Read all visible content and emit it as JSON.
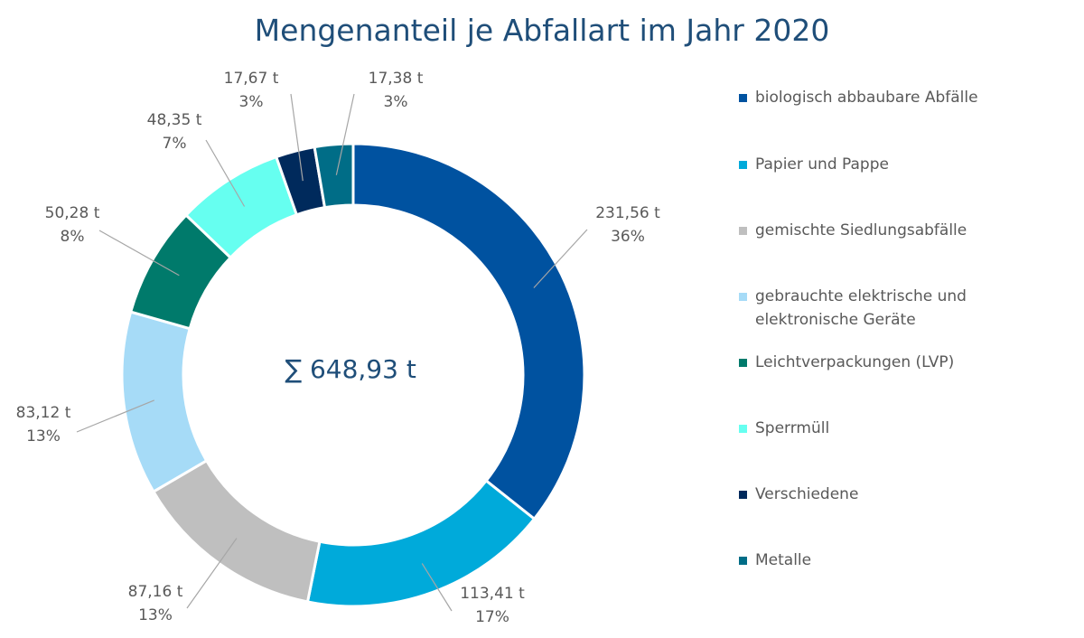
{
  "chart_data": {
    "type": "pie",
    "title": "Mengenanteil je Abfallart im Jahr 2020",
    "center_label": "∑ 648,93 t",
    "legend_position": "right",
    "slices": [
      {
        "name": "biologisch abbaubare Abfälle",
        "value": 231.56,
        "value_label": "231,56 t",
        "percent_label": "36%",
        "color": "#0052a0"
      },
      {
        "name": "Papier und Pappe",
        "value": 113.41,
        "value_label": "113,41 t",
        "percent_label": "17%",
        "color": "#00aada"
      },
      {
        "name": "gemischte Siedlungsabfälle",
        "value": 87.16,
        "value_label": "87,16 t",
        "percent_label": "13%",
        "color": "#bfbfbf"
      },
      {
        "name": "gebrauchte elektrische und elektronische Geräte",
        "value": 83.12,
        "value_label": "83,12 t",
        "percent_label": "13%",
        "color": "#a6dbf7"
      },
      {
        "name": "Leichtverpackungen (LVP)",
        "value": 50.28,
        "value_label": "50,28 t",
        "percent_label": "8%",
        "color": "#007a6b"
      },
      {
        "name": "Sperrmüll",
        "value": 48.35,
        "value_label": "48,35 t",
        "percent_label": "7%",
        "color": "#66fff0"
      },
      {
        "name": "Verschiedene",
        "value": 17.67,
        "value_label": "17,67 t",
        "percent_label": "3%",
        "color": "#002a5c"
      },
      {
        "name": "Metalle",
        "value": 17.38,
        "value_label": "17,38 t",
        "percent_label": "3%",
        "color": "#006d87"
      }
    ]
  }
}
